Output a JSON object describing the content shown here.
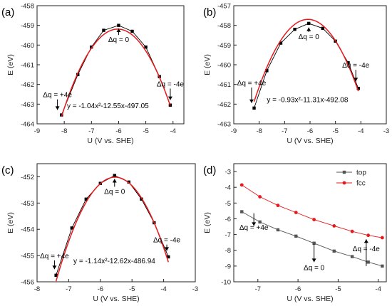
{
  "chart_data": [
    {
      "id": "a",
      "panel_label": "(a)",
      "type": "scatter",
      "xlabel": "U (V vs. SHE)",
      "ylabel": "E (eV)",
      "xlim": [
        -9,
        -3.6
      ],
      "ylim": [
        -464,
        -458
      ],
      "xticks": [
        -9,
        -8,
        -7,
        -6,
        -5,
        -4
      ],
      "yticks": [
        -464,
        -463,
        -462,
        -461,
        -460,
        -459,
        -458
      ],
      "grid": false,
      "series": [
        {
          "mark": "square-line",
          "color": "#000000",
          "x": [
            -8.1,
            -7.5,
            -7.0,
            -6.55,
            -6.0,
            -5.5,
            -5.0,
            -4.5,
            -4.1
          ],
          "y": [
            -463.55,
            -461.5,
            -460.1,
            -459.25,
            -459.0,
            -459.3,
            -460.1,
            -461.6,
            -463.05
          ]
        },
        {
          "mark": "fit",
          "color": "#e8191c",
          "fit": {
            "a": -1.04,
            "b": -12.55,
            "c": -497.05
          },
          "x_range": [
            -8.1,
            -4.1
          ]
        }
      ],
      "annotations": [
        {
          "text": "Δq = 0",
          "x": -6.0,
          "y": -459.85,
          "arrow_to_y": -459.05
        },
        {
          "text": "Δq = +4e",
          "x": -8.25,
          "y": -462.65,
          "arrow_to_y": -463.4
        },
        {
          "text": "Δq = -4e",
          "x": -4.1,
          "y": -462.1,
          "arrow_to_y": -462.9
        },
        {
          "text": "y = -1.04x²-12.55x-497.05",
          "x": -7.9,
          "y": -463.2
        }
      ]
    },
    {
      "id": "b",
      "panel_label": "(b)",
      "type": "scatter",
      "xlabel": "U (V vs. SHE)",
      "ylabel": "E (eV)",
      "xlim": [
        -9,
        -3
      ],
      "ylim": [
        -463,
        -457
      ],
      "xticks": [
        -9,
        -8,
        -7,
        -6,
        -5,
        -4,
        -3
      ],
      "yticks": [
        -463,
        -462,
        -461,
        -460,
        -459,
        -458,
        -457
      ],
      "grid": false,
      "series": [
        {
          "mark": "square-line",
          "color": "#000000",
          "x": [
            -8.2,
            -7.7,
            -7.15,
            -6.6,
            -6.05,
            -5.5,
            -5.0,
            -4.5,
            -4.1
          ],
          "y": [
            -462.2,
            -460.3,
            -458.9,
            -458.2,
            -457.9,
            -458.15,
            -458.8,
            -459.9,
            -461.2
          ]
        },
        {
          "mark": "fit",
          "color": "#e8191c",
          "fit": {
            "a": -0.93,
            "b": -11.31,
            "c": -492.08
          },
          "x_range": [
            -8.2,
            -4.1
          ]
        }
      ],
      "annotations": [
        {
          "text": "Δq = 0",
          "x": -6.05,
          "y": -458.7,
          "arrow_to_y": -458.0
        },
        {
          "text": "Δq = +4e",
          "x": -8.3,
          "y": -461.05,
          "arrow_to_y": -462.05
        },
        {
          "text": "Δq = -4e",
          "x": -4.2,
          "y": -460.15,
          "arrow_to_y": -460.95
        },
        {
          "text": "y = -0.93x²-11.31x-492.08",
          "x": -7.7,
          "y": -461.9
        }
      ]
    },
    {
      "id": "c",
      "panel_label": "(c)",
      "type": "scatter",
      "xlabel": "U (V vs. SHE)",
      "ylabel": "E (eV)",
      "xlim": [
        -8,
        -3
      ],
      "ylim": [
        -456,
        -451.5
      ],
      "xticks": [
        -8,
        -7,
        -6,
        -5,
        -4,
        -3
      ],
      "yticks": [
        -456,
        -455,
        -454,
        -453,
        -452
      ],
      "grid": false,
      "series": [
        {
          "mark": "square-line",
          "color": "#000000",
          "x": [
            -7.4,
            -6.9,
            -6.45,
            -6.0,
            -5.55,
            -5.1,
            -4.7,
            -4.3,
            -3.85
          ],
          "y": [
            -455.75,
            -453.95,
            -452.85,
            -452.25,
            -451.95,
            -452.2,
            -452.85,
            -453.75,
            -455.05
          ]
        },
        {
          "mark": "fit",
          "color": "#e8191c",
          "fit": {
            "a": -1.14,
            "b": -12.62,
            "c": -486.94
          },
          "x_range": [
            -7.4,
            -3.85
          ]
        }
      ],
      "annotations": [
        {
          "text": "Δq = 0",
          "x": -5.55,
          "y": -452.65,
          "arrow_to_y": -452.0
        },
        {
          "text": "Δq = +4e",
          "x": -7.45,
          "y": -455.1,
          "arrow_to_y": -455.6
        },
        {
          "text": "Δq = -4e",
          "x": -3.9,
          "y": -454.5,
          "arrow_to_y": -454.9
        },
        {
          "text": "y = -1.14x²-12.62x-486.94",
          "x": -6.85,
          "y": -455.3
        }
      ]
    },
    {
      "id": "d",
      "panel_label": "(d)",
      "type": "line",
      "xlabel": "U (V vs. SHE)",
      "ylabel": "E (eV)",
      "xlim": [
        -7.6,
        -3.8
      ],
      "ylim": [
        -10,
        -2.5
      ],
      "xticks": [
        -7,
        -6,
        -5,
        -4
      ],
      "yticks": [
        -10,
        -9,
        -8,
        -7,
        -6,
        -5,
        -4,
        -3
      ],
      "grid": false,
      "legend_position": "top-right",
      "series": [
        {
          "name": "top",
          "mark": "square-line",
          "color": "#555555",
          "x": [
            -7.4,
            -6.95,
            -6.5,
            -6.05,
            -5.6,
            -5.1,
            -4.65,
            -4.25,
            -3.9
          ],
          "y": [
            -5.55,
            -6.2,
            -6.7,
            -7.1,
            -7.55,
            -8.05,
            -8.4,
            -8.75,
            -9.0
          ]
        },
        {
          "name": "fcc",
          "mark": "circle-line",
          "color": "#e8191c",
          "x": [
            -7.4,
            -6.95,
            -6.5,
            -6.05,
            -5.6,
            -5.1,
            -4.65,
            -4.25,
            -3.9
          ],
          "y": [
            -3.85,
            -4.6,
            -5.15,
            -5.6,
            -6.05,
            -6.45,
            -6.8,
            -7.05,
            -7.2
          ]
        }
      ],
      "annotations": [
        {
          "text": "Δq = +4e",
          "x": -7.1,
          "y": -6.7,
          "arrow_from_y": -5.65,
          "arrow_to_y": -6.45
        },
        {
          "text": "Δq = 0",
          "x": -5.6,
          "y": -9.25,
          "arrow_from_y": -7.6,
          "arrow_to_y": -8.75
        },
        {
          "text": "Δq = -4e",
          "x": -4.3,
          "y": -8.05,
          "arrow_from_y": -9.0,
          "arrow_to_y": -7.3
        }
      ]
    }
  ]
}
